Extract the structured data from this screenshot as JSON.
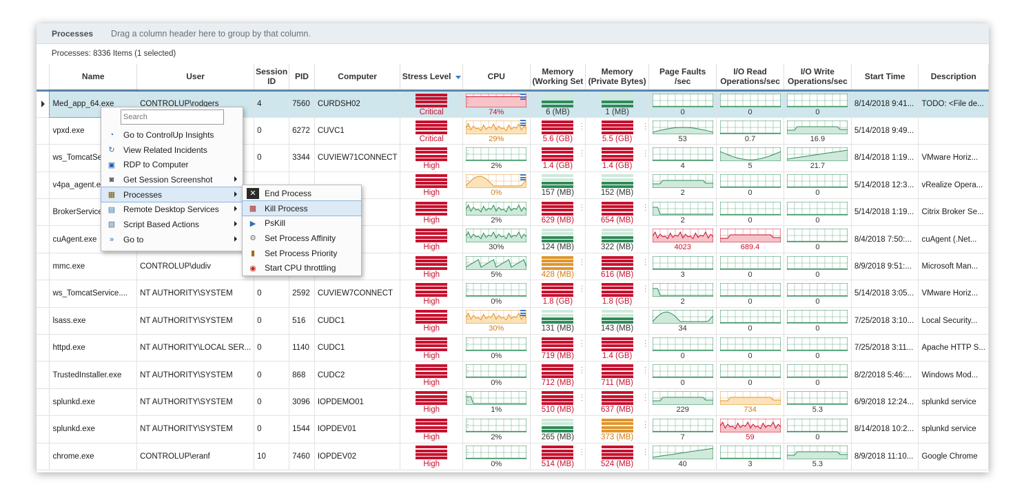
{
  "panel": {
    "title": "Processes",
    "group_hint": "Drag a column header here to group by that column.",
    "count": "Processes: 8336 Items (1 selected)"
  },
  "columns": [
    "Name",
    "User",
    "Session ID",
    "PID",
    "Computer",
    "Stress Level",
    "CPU",
    "Memory (Working Set",
    "Memory (Private Bytes)",
    "Page Faults /sec",
    "I/O Read Operations/sec",
    "I/O Write Operations/sec",
    "Start Time",
    "Description"
  ],
  "colors": {
    "red": "#c8102e",
    "green": "#2e8b57",
    "orange": "#e0952c",
    "selected_row": "#cfe6ec",
    "header_rule": "#5a86ad"
  },
  "rows": [
    {
      "name": "Med_app_64.exe",
      "user": "CONTROLUP\\rodgers",
      "session": "4",
      "pid": "7560",
      "computer": "CURDSH02",
      "stress": "Critical",
      "cpu": "74%",
      "cpu_state": "red",
      "cpu_shape": "flat",
      "cpu_level": 0.74,
      "cpu_menu": true,
      "mem_ws": "6 (MB)",
      "mem_ws_state": "green",
      "mem_pb": "1 (MB)",
      "mem_pb_state": "green",
      "pf": "0",
      "pf_state": "green",
      "pf_shape": "flat",
      "io_r": "0",
      "io_r_state": "green",
      "io_r_shape": "flat",
      "io_w": "0",
      "io_w_state": "green",
      "io_w_shape": "flat",
      "start": "8/14/2018 9:41...",
      "desc": "TODO: <File de..."
    },
    {
      "name": "vpxd.exe",
      "user": "",
      "session": "0",
      "pid": "6272",
      "computer": "CUVC1",
      "stress": "Critical",
      "cpu": "29%",
      "cpu_state": "orange",
      "cpu_shape": "spiky",
      "cpu_level": 0.29,
      "cpu_menu": true,
      "mem_ws": "5.6 (GB)",
      "mem_ws_state": "red",
      "mem_pb": "5.5 (GB)",
      "mem_pb_state": "red",
      "pf": "53",
      "pf_state": "green",
      "pf_shape": "bump",
      "io_r": "0.7",
      "io_r_state": "green",
      "io_r_shape": "flat",
      "io_w": "16.9",
      "io_w_state": "green",
      "io_w_shape": "plateau",
      "start": "5/14/2018 9:49...",
      "desc": ""
    },
    {
      "name": "ws_TomcatService.exe",
      "user": "",
      "session": "0",
      "pid": "3344",
      "computer": "CUVIEW71CONNECT",
      "stress": "High",
      "cpu": "2%",
      "cpu_state": "green",
      "cpu_shape": "flat",
      "cpu_level": 0.02,
      "cpu_menu": false,
      "mem_ws": "1.4 (GB)",
      "mem_ws_state": "red",
      "mem_pb": "1.4 (GB)",
      "mem_pb_state": "red",
      "pf": "4",
      "pf_state": "green",
      "pf_shape": "flat",
      "io_r": "5",
      "io_r_state": "green",
      "io_r_shape": "dip",
      "io_w": "21.7",
      "io_w_state": "green",
      "io_w_shape": "rise",
      "start": "8/14/2018 1:19...",
      "desc": "VMware Horiz..."
    },
    {
      "name": "v4pa_agent.exe",
      "user": "",
      "session": "",
      "pid": "",
      "computer": "",
      "stress": "High",
      "cpu": "0%",
      "cpu_state": "orange",
      "cpu_shape": "hill",
      "cpu_level": 0.0,
      "cpu_menu": true,
      "mem_ws": "157 (MB)",
      "mem_ws_state": "green",
      "mem_pb": "152 (MB)",
      "mem_pb_state": "green",
      "pf": "2",
      "pf_state": "green",
      "pf_shape": "plateau",
      "io_r": "0",
      "io_r_state": "green",
      "io_r_shape": "flat",
      "io_w": "0",
      "io_w_state": "green",
      "io_w_shape": "flat",
      "start": "5/14/2018 12:3...",
      "desc": "vRealize Opera..."
    },
    {
      "name": "BrokerService.exe",
      "user": "",
      "session": "",
      "pid": "",
      "computer": "",
      "stress": "High",
      "cpu": "2%",
      "cpu_state": "green",
      "cpu_shape": "spiky",
      "cpu_level": 0.02,
      "cpu_menu": false,
      "mem_ws": "629 (MB)",
      "mem_ws_state": "red",
      "mem_pb": "654 (MB)",
      "mem_pb_state": "red",
      "pf": "2",
      "pf_state": "green",
      "pf_shape": "drop",
      "io_r": "0",
      "io_r_state": "green",
      "io_r_shape": "flat",
      "io_w": "0",
      "io_w_state": "green",
      "io_w_shape": "flat",
      "start": "5/14/2018 1:19...",
      "desc": "Citrix Broker Se..."
    },
    {
      "name": "cuAgent.exe",
      "user": "",
      "session": "",
      "pid": "",
      "computer": "",
      "stress": "High",
      "cpu": "30%",
      "cpu_state": "green",
      "cpu_shape": "spiky",
      "cpu_level": 0.3,
      "cpu_menu": false,
      "mem_ws": "124 (MB)",
      "mem_ws_state": "green",
      "mem_pb": "322 (MB)",
      "mem_pb_state": "green",
      "pf": "4023",
      "pf_state": "red",
      "pf_shape": "spiky",
      "io_r": "689.4",
      "io_r_state": "red",
      "io_r_shape": "plateau",
      "io_w": "0",
      "io_w_state": "green",
      "io_w_shape": "flat",
      "start": "8/4/2018 7:50:...",
      "desc": "cuAgent (.Net..."
    },
    {
      "name": "mmc.exe",
      "user": "CONTROLUP\\dudiv",
      "session": "",
      "pid": "",
      "computer": "",
      "stress": "High",
      "cpu": "5%",
      "cpu_state": "green",
      "cpu_shape": "saw",
      "cpu_level": 0.05,
      "cpu_menu": false,
      "mem_ws": "428 (MB)",
      "mem_ws_state": "orange",
      "mem_pb": "616 (MB)",
      "mem_pb_state": "red",
      "pf": "3",
      "pf_state": "green",
      "pf_shape": "flat",
      "io_r": "0",
      "io_r_state": "green",
      "io_r_shape": "flat",
      "io_w": "0",
      "io_w_state": "green",
      "io_w_shape": "flat",
      "start": "8/9/2018 9:51:...",
      "desc": "Microsoft Man..."
    },
    {
      "name": "ws_TomcatService....",
      "user": "NT AUTHORITY\\SYSTEM",
      "session": "0",
      "pid": "2592",
      "computer": "CUVIEW7CONNECT",
      "stress": "High",
      "cpu": "0%",
      "cpu_state": "green",
      "cpu_shape": "flat",
      "cpu_level": 0.0,
      "cpu_menu": false,
      "mem_ws": "1.8 (GB)",
      "mem_ws_state": "red",
      "mem_pb": "1.8 (GB)",
      "mem_pb_state": "red",
      "pf": "2",
      "pf_state": "green",
      "pf_shape": "drop",
      "io_r": "0",
      "io_r_state": "green",
      "io_r_shape": "flat",
      "io_w": "0",
      "io_w_state": "green",
      "io_w_shape": "flat",
      "start": "5/14/2018 3:05...",
      "desc": "VMware Horiz..."
    },
    {
      "name": "lsass.exe",
      "user": "NT AUTHORITY\\SYSTEM",
      "session": "0",
      "pid": "516",
      "computer": "CUDC1",
      "stress": "High",
      "cpu": "30%",
      "cpu_state": "orange",
      "cpu_shape": "spiky",
      "cpu_level": 0.3,
      "cpu_menu": true,
      "mem_ws": "131 (MB)",
      "mem_ws_state": "green",
      "mem_pb": "143 (MB)",
      "mem_pb_state": "green",
      "pf": "34",
      "pf_state": "green",
      "pf_shape": "hill",
      "io_r": "0",
      "io_r_state": "green",
      "io_r_shape": "flat",
      "io_w": "0",
      "io_w_state": "green",
      "io_w_shape": "flat",
      "start": "7/25/2018 3:10...",
      "desc": "Local Security..."
    },
    {
      "name": "httpd.exe",
      "user": "NT AUTHORITY\\LOCAL SER...",
      "session": "0",
      "pid": "1140",
      "computer": "CUDC1",
      "stress": "High",
      "cpu": "0%",
      "cpu_state": "green",
      "cpu_shape": "flat",
      "cpu_level": 0.0,
      "cpu_menu": false,
      "mem_ws": "719 (MB)",
      "mem_ws_state": "red",
      "mem_pb": "1.4 (GB)",
      "mem_pb_state": "red",
      "pf": "0",
      "pf_state": "green",
      "pf_shape": "flat",
      "io_r": "0",
      "io_r_state": "green",
      "io_r_shape": "flat",
      "io_w": "0",
      "io_w_state": "green",
      "io_w_shape": "flat",
      "start": "7/25/2018 3:11...",
      "desc": "Apache HTTP S..."
    },
    {
      "name": "TrustedInstaller.exe",
      "user": "NT AUTHORITY\\SYSTEM",
      "session": "0",
      "pid": "868",
      "computer": "CUDC2",
      "stress": "High",
      "cpu": "0%",
      "cpu_state": "green",
      "cpu_shape": "flat",
      "cpu_level": 0.0,
      "cpu_menu": false,
      "mem_ws": "712 (MB)",
      "mem_ws_state": "red",
      "mem_pb": "711 (MB)",
      "mem_pb_state": "red",
      "pf": "0",
      "pf_state": "green",
      "pf_shape": "flat",
      "io_r": "0",
      "io_r_state": "green",
      "io_r_shape": "flat",
      "io_w": "0",
      "io_w_state": "green",
      "io_w_shape": "flat",
      "start": "8/2/2018 5:46:...",
      "desc": "Windows Mod..."
    },
    {
      "name": "splunkd.exe",
      "user": "NT AUTHORITY\\SYSTEM",
      "session": "0",
      "pid": "3096",
      "computer": "IOPDEMO01",
      "stress": "High",
      "cpu": "1%",
      "cpu_state": "green",
      "cpu_shape": "drop",
      "cpu_level": 0.01,
      "cpu_menu": false,
      "mem_ws": "510 (MB)",
      "mem_ws_state": "red",
      "mem_pb": "637 (MB)",
      "mem_pb_state": "red",
      "pf": "229",
      "pf_state": "green",
      "pf_shape": "plateau",
      "io_r": "734",
      "io_r_state": "orange",
      "io_r_shape": "plateau",
      "io_w": "5.3",
      "io_w_state": "green",
      "io_w_shape": "flat",
      "start": "6/9/2018 12:24...",
      "desc": "splunkd service"
    },
    {
      "name": "splunkd.exe",
      "user": "NT AUTHORITY\\SYSTEM",
      "session": "0",
      "pid": "1544",
      "computer": "IOPDEV01",
      "stress": "High",
      "cpu": "2%",
      "cpu_state": "green",
      "cpu_shape": "flat",
      "cpu_level": 0.02,
      "cpu_menu": false,
      "mem_ws": "265 (MB)",
      "mem_ws_state": "green",
      "mem_pb": "373 (MB)",
      "mem_pb_state": "orange",
      "pf": "7",
      "pf_state": "green",
      "pf_shape": "flat",
      "io_r": "59",
      "io_r_state": "red",
      "io_r_shape": "spiky",
      "io_w": "0",
      "io_w_state": "green",
      "io_w_shape": "flat",
      "start": "8/14/2018 10:2...",
      "desc": "splunkd service"
    },
    {
      "name": "chrome.exe",
      "user": "CONTROLUP\\eranf",
      "session": "10",
      "pid": "7460",
      "computer": "IOPDEV02",
      "stress": "High",
      "cpu": "0%",
      "cpu_state": "green",
      "cpu_shape": "flat",
      "cpu_level": 0.0,
      "cpu_menu": false,
      "mem_ws": "514 (MB)",
      "mem_ws_state": "red",
      "mem_pb": "524 (MB)",
      "mem_pb_state": "red",
      "pf": "40",
      "pf_state": "green",
      "pf_shape": "rise",
      "io_r": "3",
      "io_r_state": "green",
      "io_r_shape": "flat",
      "io_w": "5.3",
      "io_w_state": "green",
      "io_w_shape": "plateau",
      "start": "8/9/2018 11:10...",
      "desc": "Google Chrome"
    }
  ],
  "context_menu": {
    "search_placeholder": "Search",
    "items": [
      {
        "label": "Go to ControlUp Insights",
        "icon": "insights-icon",
        "submenu": false
      },
      {
        "label": "View Related Incidents",
        "icon": "incidents-icon",
        "submenu": false
      },
      {
        "label": "RDP to Computer",
        "icon": "rdp-icon",
        "submenu": false
      },
      {
        "label": "Get Session Screenshot",
        "icon": "camera-icon",
        "submenu": true
      },
      {
        "label": "Processes",
        "icon": "processes-icon",
        "submenu": true
      },
      {
        "label": "Remote Desktop Services",
        "icon": "remote-desktop-icon",
        "submenu": true
      },
      {
        "label": "Script Based Actions",
        "icon": "script-icon",
        "submenu": true
      },
      {
        "label": "Go to",
        "icon": "goto-icon",
        "submenu": true
      }
    ]
  },
  "process_submenu": {
    "items": [
      {
        "label": "End Process",
        "icon": "end-process-icon"
      },
      {
        "label": "Kill Process",
        "icon": "kill-process-icon"
      },
      {
        "label": "PsKill",
        "icon": "pskill-icon"
      },
      {
        "label": "Set Process Affinity",
        "icon": "affinity-icon"
      },
      {
        "label": "Set Process Priority",
        "icon": "priority-icon"
      },
      {
        "label": "Start CPU throttling",
        "icon": "throttle-icon"
      }
    ]
  }
}
